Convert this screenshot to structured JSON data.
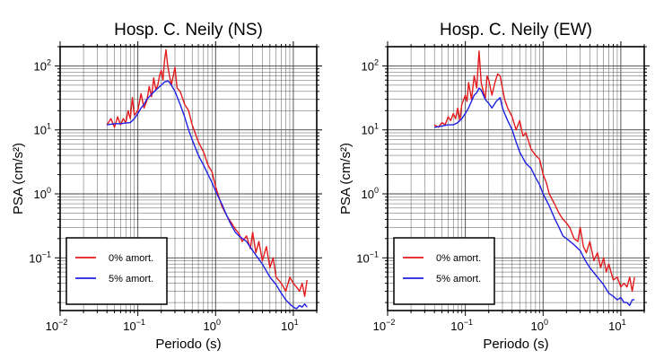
{
  "chart_data": [
    {
      "type": "line",
      "title": "Hosp. C. Neily (NS)",
      "xlabel": "Periodo (s)",
      "ylabel": "PSA (cm/s²)",
      "xscale": "log",
      "yscale": "log",
      "xlim": [
        0.01,
        20
      ],
      "ylim": [
        0.015,
        200
      ],
      "x_ticks": [
        {
          "base": "10",
          "exp": "−2"
        },
        {
          "base": "10",
          "exp": "−1"
        },
        {
          "base": "10",
          "exp": "0"
        },
        {
          "base": "10",
          "exp": "1"
        }
      ],
      "y_ticks": [
        {
          "base": "10",
          "exp": "−1"
        },
        {
          "base": "10",
          "exp": "0"
        },
        {
          "base": "10",
          "exp": "1"
        },
        {
          "base": "10",
          "exp": "2"
        }
      ],
      "grid": true,
      "legend_position": "bottom-left",
      "series": [
        {
          "name": "0% amort.",
          "color": "#e41a1c",
          "x": [
            0.04,
            0.045,
            0.05,
            0.055,
            0.06,
            0.065,
            0.07,
            0.075,
            0.08,
            0.085,
            0.09,
            0.1,
            0.11,
            0.12,
            0.13,
            0.14,
            0.15,
            0.16,
            0.17,
            0.18,
            0.19,
            0.2,
            0.21,
            0.22,
            0.23,
            0.24,
            0.25,
            0.27,
            0.3,
            0.32,
            0.35,
            0.4,
            0.45,
            0.5,
            0.6,
            0.7,
            0.8,
            0.9,
            1.0,
            1.1,
            1.2,
            1.4,
            1.6,
            1.8,
            2.0,
            2.2,
            2.5,
            2.8,
            3.0,
            3.3,
            3.6,
            4.0,
            4.5,
            5.0,
            5.5,
            6.0,
            7.0,
            8.0,
            9.0,
            10.0,
            11.0,
            12.0,
            13.0,
            14.0,
            15.0
          ],
          "y": [
            12,
            15,
            11,
            16,
            12,
            15,
            13,
            20,
            15,
            32,
            17,
            20,
            37,
            22,
            28,
            48,
            33,
            65,
            42,
            50,
            70,
            85,
            60,
            120,
            180,
            110,
            80,
            50,
            95,
            45,
            40,
            25,
            20,
            12,
            6.5,
            4.5,
            2.8,
            2.2,
            1.3,
            0.9,
            0.65,
            0.45,
            0.35,
            0.28,
            0.24,
            0.18,
            0.22,
            0.14,
            0.25,
            0.12,
            0.18,
            0.09,
            0.15,
            0.07,
            0.1,
            0.05,
            0.04,
            0.03,
            0.05,
            0.04,
            0.035,
            0.03,
            0.04,
            0.025,
            0.045
          ]
        },
        {
          "name": "5% amort.",
          "color": "#1f1fe6",
          "x": [
            0.04,
            0.05,
            0.06,
            0.07,
            0.08,
            0.09,
            0.1,
            0.11,
            0.12,
            0.13,
            0.14,
            0.15,
            0.17,
            0.2,
            0.22,
            0.24,
            0.25,
            0.27,
            0.3,
            0.32,
            0.35,
            0.4,
            0.45,
            0.5,
            0.6,
            0.7,
            0.8,
            0.9,
            1.0,
            1.2,
            1.4,
            1.6,
            1.8,
            2.0,
            2.5,
            3.0,
            3.5,
            4.0,
            5.0,
            6.0,
            7.0,
            8.0,
            9.0,
            10.0,
            11.0,
            12.0,
            13.0,
            14.0,
            15.0
          ],
          "y": [
            12,
            12.5,
            12.5,
            12.8,
            13,
            15,
            18,
            22,
            25,
            30,
            33,
            36,
            42,
            50,
            56,
            58,
            57,
            50,
            40,
            33,
            25,
            16,
            10,
            7,
            4,
            2.8,
            2,
            1.5,
            1.1,
            0.7,
            0.45,
            0.32,
            0.25,
            0.22,
            0.18,
            0.13,
            0.1,
            0.08,
            0.05,
            0.038,
            0.028,
            0.022,
            0.019,
            0.017,
            0.016,
            0.018,
            0.017,
            0.019,
            0.017
          ]
        }
      ]
    },
    {
      "type": "line",
      "title": "Hosp. C. Neily (EW)",
      "xlabel": "Periodo (s)",
      "ylabel": "PSA (cm/s²)",
      "xscale": "log",
      "yscale": "log",
      "xlim": [
        0.01,
        20
      ],
      "ylim": [
        0.015,
        200
      ],
      "x_ticks": [
        {
          "base": "10",
          "exp": "−2"
        },
        {
          "base": "10",
          "exp": "−1"
        },
        {
          "base": "10",
          "exp": "0"
        },
        {
          "base": "10",
          "exp": "1"
        }
      ],
      "y_ticks": [
        {
          "base": "10",
          "exp": "−1"
        },
        {
          "base": "10",
          "exp": "0"
        },
        {
          "base": "10",
          "exp": "1"
        },
        {
          "base": "10",
          "exp": "2"
        }
      ],
      "grid": true,
      "legend_position": "bottom-left",
      "series": [
        {
          "name": "0% amort.",
          "color": "#e41a1c",
          "x": [
            0.04,
            0.045,
            0.05,
            0.055,
            0.06,
            0.065,
            0.07,
            0.075,
            0.08,
            0.085,
            0.09,
            0.1,
            0.105,
            0.11,
            0.12,
            0.13,
            0.14,
            0.15,
            0.16,
            0.17,
            0.18,
            0.19,
            0.2,
            0.22,
            0.24,
            0.26,
            0.28,
            0.3,
            0.32,
            0.35,
            0.4,
            0.45,
            0.5,
            0.55,
            0.6,
            0.7,
            0.8,
            0.9,
            1.0,
            1.1,
            1.2,
            1.4,
            1.6,
            1.8,
            2.0,
            2.2,
            2.5,
            2.8,
            3.0,
            3.3,
            3.6,
            4.0,
            4.5,
            5.0,
            5.5,
            6.0,
            6.5,
            7.0,
            8.0,
            9.0,
            10.0,
            11.0,
            12.0,
            13.0,
            14.0,
            15.0
          ],
          "y": [
            12,
            11,
            13,
            12,
            16,
            14,
            18,
            15,
            22,
            14,
            25,
            35,
            28,
            55,
            30,
            70,
            45,
            170,
            55,
            40,
            30,
            70,
            60,
            35,
            55,
            75,
            70,
            45,
            30,
            22,
            16,
            10,
            14,
            8,
            9,
            5,
            4,
            3.5,
            2,
            1.5,
            1.0,
            0.7,
            0.5,
            0.4,
            0.35,
            0.3,
            0.2,
            0.18,
            0.3,
            0.15,
            0.12,
            0.18,
            0.09,
            0.12,
            0.07,
            0.1,
            0.06,
            0.08,
            0.045,
            0.05,
            0.035,
            0.04,
            0.035,
            0.05,
            0.03,
            0.05
          ]
        },
        {
          "name": "5% amort.",
          "color": "#1f1fe6",
          "x": [
            0.04,
            0.05,
            0.06,
            0.07,
            0.08,
            0.09,
            0.1,
            0.11,
            0.12,
            0.13,
            0.14,
            0.15,
            0.16,
            0.18,
            0.2,
            0.22,
            0.25,
            0.28,
            0.3,
            0.32,
            0.35,
            0.4,
            0.45,
            0.5,
            0.6,
            0.7,
            0.8,
            0.9,
            1.0,
            1.2,
            1.4,
            1.6,
            1.8,
            2.0,
            2.5,
            3.0,
            3.5,
            4.0,
            5.0,
            6.0,
            7.0,
            8.0,
            9.0,
            10.0,
            11.0,
            12.0,
            13.0,
            14.0,
            15.0
          ],
          "y": [
            11,
            11.5,
            12,
            12,
            13,
            15,
            18,
            22,
            28,
            35,
            38,
            45,
            42,
            30,
            26,
            22,
            28,
            32,
            22,
            18,
            14,
            10,
            6.5,
            4.5,
            3,
            2.5,
            1.8,
            1.4,
            1.0,
            0.65,
            0.42,
            0.3,
            0.22,
            0.2,
            0.16,
            0.13,
            0.09,
            0.07,
            0.05,
            0.038,
            0.028,
            0.025,
            0.022,
            0.024,
            0.02,
            0.02,
            0.018,
            0.022,
            0.022
          ]
        }
      ]
    }
  ]
}
